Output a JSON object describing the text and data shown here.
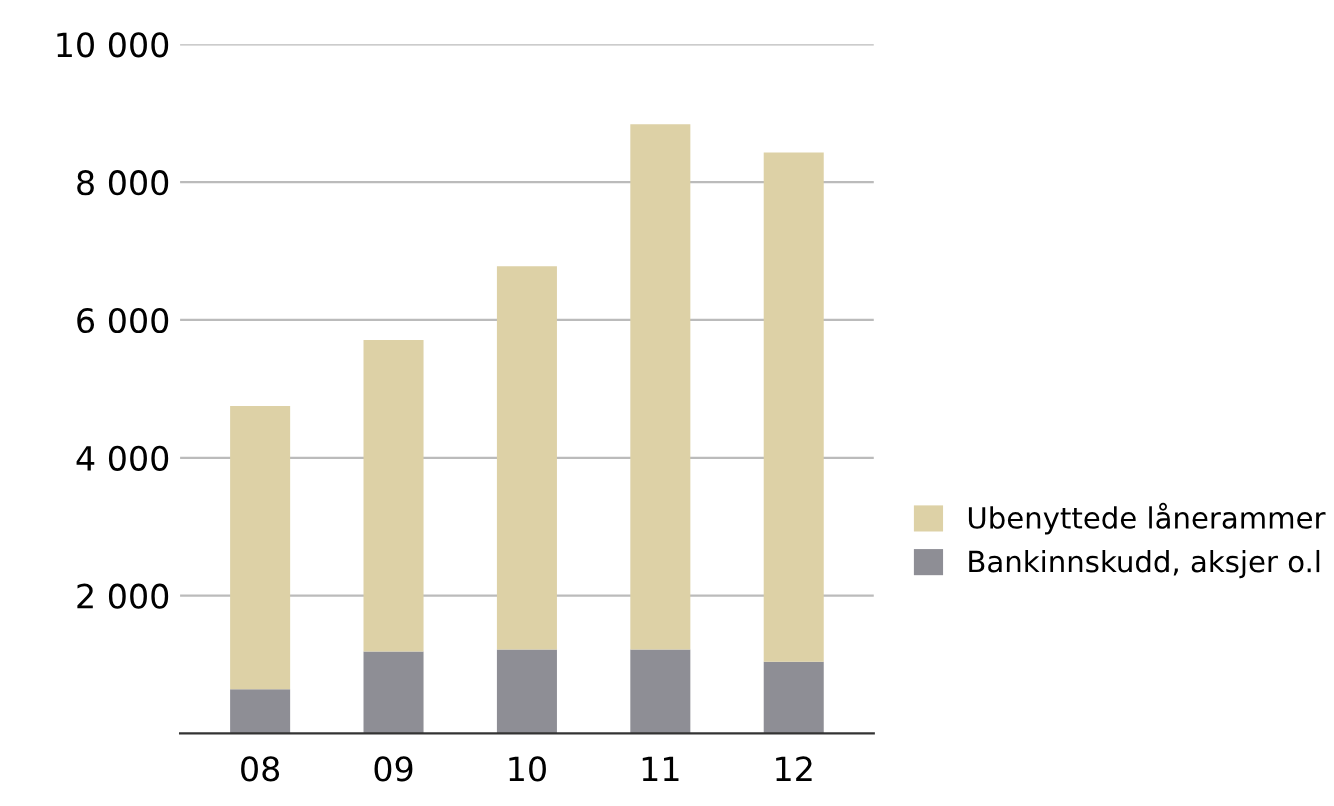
{
  "chart_data": {
    "type": "bar",
    "stacked": true,
    "categories": [
      "08",
      "09",
      "10",
      "11",
      "12"
    ],
    "series": [
      {
        "name": "Bankinnskudd, aksjer o.l",
        "color": "#8e8e95",
        "values": [
          640,
          1190,
          1220,
          1220,
          1040
        ]
      },
      {
        "name": "Ubenyttede lånerammer",
        "color": "#ddd1a6",
        "values": [
          4110,
          4520,
          5560,
          7620,
          7390
        ]
      }
    ],
    "ylim": [
      0,
      10000
    ],
    "yticks": [
      {
        "value": 2000,
        "label": "2 000"
      },
      {
        "value": 4000,
        "label": "4 000"
      },
      {
        "value": 6000,
        "label": "6 000"
      },
      {
        "value": 8000,
        "label": "8 000"
      },
      {
        "value": 10000,
        "label": "10 000"
      }
    ],
    "grid": "y",
    "legend": "right"
  }
}
